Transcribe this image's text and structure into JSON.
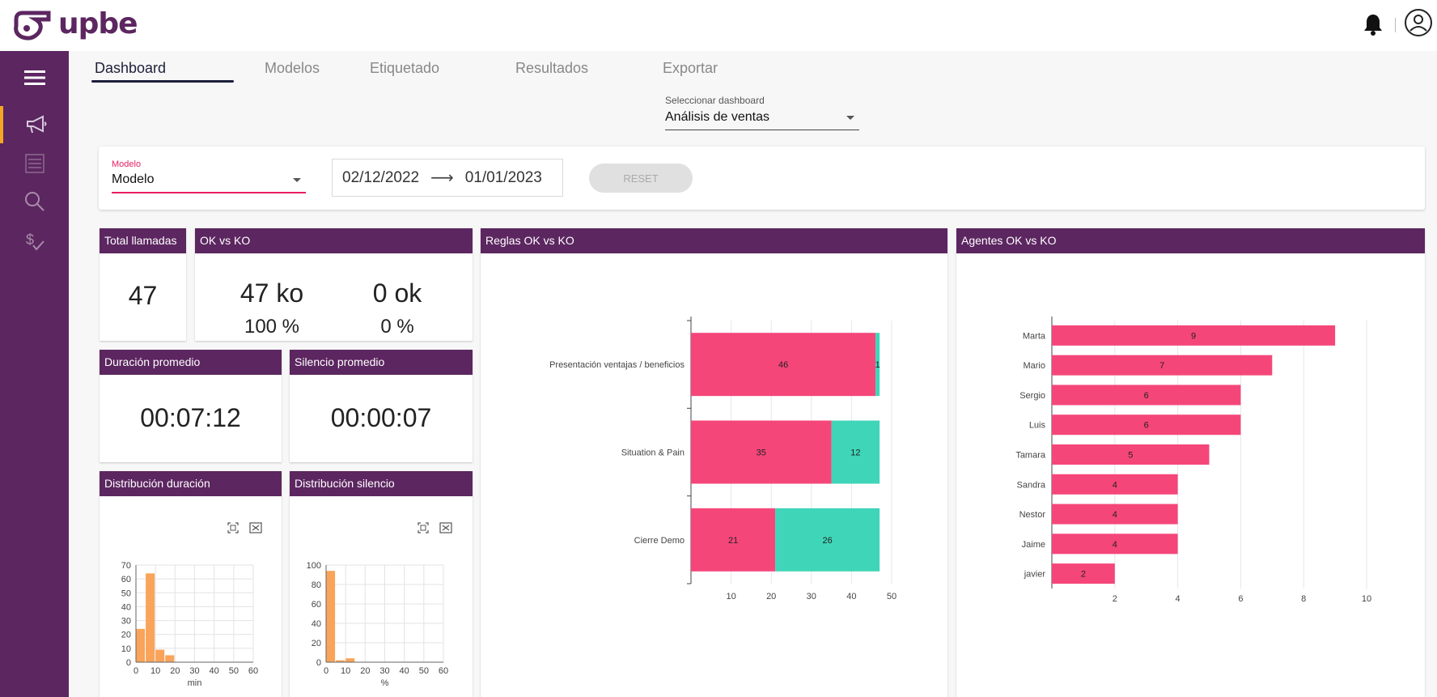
{
  "app": {
    "name": "upbe"
  },
  "header": {
    "bell_icon": "bell-icon",
    "user_icon": "user-icon"
  },
  "sidebar": {
    "items": [
      {
        "name": "menu",
        "icon": "hamburger-icon"
      },
      {
        "name": "campaigns",
        "icon": "megaphone-icon",
        "active": true
      },
      {
        "name": "list",
        "icon": "list-icon"
      },
      {
        "name": "search",
        "icon": "search-icon"
      },
      {
        "name": "billing",
        "icon": "dollar-check-icon"
      }
    ],
    "accent": "#f5a623",
    "bg": "#5c2660"
  },
  "tabs": [
    {
      "label": "Dashboard",
      "active": true
    },
    {
      "label": "Modelos"
    },
    {
      "label": "Etiquetado"
    },
    {
      "label": "Resultados"
    },
    {
      "label": "Exportar"
    }
  ],
  "dashboard_select": {
    "label": "Seleccionar dashboard",
    "value": "Análisis de ventas"
  },
  "filters": {
    "model_label": "Modelo",
    "model_value": "Modelo",
    "date_start": "02/12/2022",
    "date_end": "01/01/2023",
    "reset_label": "RESET"
  },
  "cards": {
    "total": {
      "title": "Total llamadas",
      "value": "47"
    },
    "okko": {
      "title": "OK vs KO",
      "ko": "47 ko",
      "ok": "0 ok",
      "ko_pct": "100 %",
      "ok_pct": "0 %"
    },
    "duration": {
      "title": "Duración promedio",
      "value": "00:07:12"
    },
    "silence": {
      "title": "Silencio promedio",
      "value": "00:00:07"
    },
    "dist_duration": {
      "title": "Distribución duración"
    },
    "dist_silence": {
      "title": "Distribución silencio"
    },
    "rules": {
      "title": "Reglas OK vs KO"
    },
    "agents": {
      "title": "Agentes OK vs KO"
    }
  },
  "colors": {
    "ko": "#f5467a",
    "ok": "#3fd5b9",
    "hist": "#f9a45a",
    "header": "#5c2660"
  },
  "chart_data": [
    {
      "type": "bar",
      "title": "Distribución duración",
      "xlabel": "min",
      "ylabel": "",
      "bins_x": [
        0,
        5,
        10,
        15,
        20
      ],
      "bin_width": 5,
      "values": [
        24,
        64,
        9,
        5,
        0
      ],
      "xlim": [
        0,
        60
      ],
      "ylim": [
        0,
        70
      ],
      "xticks": [
        0,
        10,
        20,
        30,
        40,
        50,
        60
      ],
      "yticks": [
        0,
        10,
        20,
        30,
        40,
        50,
        60,
        70
      ]
    },
    {
      "type": "bar",
      "title": "Distribución silencio",
      "xlabel": "%",
      "ylabel": "",
      "bins_x": [
        0,
        5,
        10
      ],
      "bin_width": 5,
      "values": [
        94,
        2,
        4
      ],
      "xlim": [
        0,
        60
      ],
      "ylim": [
        0,
        100
      ],
      "xticks": [
        0,
        10,
        20,
        30,
        40,
        50,
        60
      ],
      "yticks": [
        0,
        20,
        40,
        60,
        80,
        100
      ]
    },
    {
      "type": "bar",
      "orientation": "horizontal",
      "stacked": true,
      "title": "Reglas OK vs KO",
      "categories": [
        "Presentación ventajas / beneficios",
        "Situation & Pain",
        "Cierre Demo"
      ],
      "series": [
        {
          "values": [
            46,
            35,
            21
          ]
        },
        {
          "values": [
            1,
            12,
            26
          ]
        }
      ],
      "xlim": [
        0,
        50
      ],
      "xticks": [
        10,
        20,
        30,
        40,
        50
      ]
    },
    {
      "type": "bar",
      "orientation": "horizontal",
      "title": "Agentes OK vs KO",
      "categories": [
        "Marta",
        "Mario",
        "Sergio",
        "Luis",
        "Tamara",
        "Sandra",
        "Nestor",
        "Jaime",
        "javier"
      ],
      "values": [
        9,
        7,
        6,
        6,
        5,
        4,
        4,
        4,
        2
      ],
      "xlim": [
        0,
        10
      ],
      "xticks": [
        2,
        4,
        6,
        8,
        10
      ]
    }
  ]
}
